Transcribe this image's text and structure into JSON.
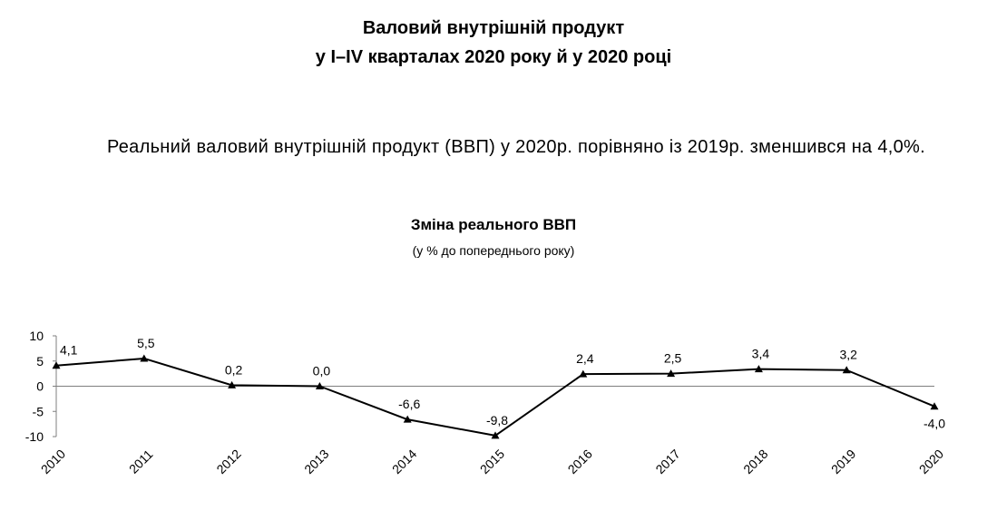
{
  "document": {
    "title_line1": "Валовий внутрішній продукт",
    "title_line2": "у I–IV кварталах 2020 року й у 2020 році",
    "intro_text": "Реальний валовий внутрішній продукт (ВВП) у 2020р. порівняно із 2019р. зменшився на 4,0%."
  },
  "chart_data": {
    "type": "line",
    "title": "Зміна реального ВВП",
    "subtitle": "(у % до попереднього року)",
    "xlabel": "",
    "ylabel": "",
    "categories": [
      "2010",
      "2011",
      "2012",
      "2013",
      "2014",
      "2015",
      "2016",
      "2017",
      "2018",
      "2019",
      "2020"
    ],
    "series": [
      {
        "values": [
          4.1,
          5.5,
          0.2,
          0.0,
          -6.6,
          -9.8,
          2.4,
          2.5,
          3.4,
          3.2,
          -4.0
        ],
        "data_labels": [
          "4,1",
          "5,5",
          "0,2",
          "0,0",
          "-6,6",
          "-9,8",
          "2,4",
          "2,5",
          "3,4",
          "3,2",
          "-4,0"
        ]
      }
    ],
    "ylim": [
      -10,
      10
    ],
    "yticks": [
      10,
      5,
      0,
      -5,
      -10
    ],
    "ytick_labels": [
      "10",
      "5",
      "0",
      "-5",
      "-10"
    ],
    "marker": "triangle",
    "grid": false,
    "legend": "none",
    "colors": {
      "line": "#000000",
      "axis": "#7f7f7f"
    }
  }
}
